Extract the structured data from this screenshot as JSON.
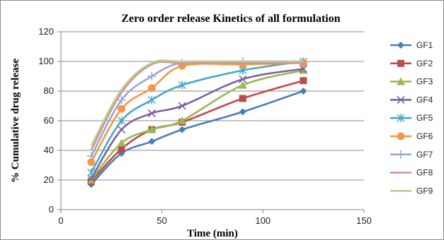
{
  "chart_data": {
    "type": "line",
    "title": "Zero order release Kinetics of all formulation",
    "xlabel": "Time (min)",
    "ylabel": "% Cumulative drug release",
    "xlim": [
      0,
      150
    ],
    "ylim": [
      0,
      120
    ],
    "xticks": [
      0,
      50,
      100,
      150
    ],
    "yticks": [
      0,
      20,
      40,
      60,
      80,
      100,
      120
    ],
    "grid": "horizontal",
    "legend_position": "right",
    "x": [
      15,
      30,
      45,
      60,
      90,
      120
    ],
    "series": [
      {
        "name": "GF1",
        "color": "#4a7ebb",
        "marker": "diamond",
        "values": [
          17,
          38,
          46,
          54,
          66,
          80
        ]
      },
      {
        "name": "GF2",
        "color": "#be4b48",
        "marker": "square",
        "values": [
          19,
          41,
          54,
          59,
          75,
          87
        ]
      },
      {
        "name": "GF3",
        "color": "#98b954",
        "marker": "triangle",
        "values": [
          20,
          45,
          54,
          60,
          84,
          94
        ]
      },
      {
        "name": "GF4",
        "color": "#7d60a0",
        "marker": "x",
        "values": [
          21,
          54,
          65,
          70,
          88,
          95
        ]
      },
      {
        "name": "GF5",
        "color": "#46aac5",
        "marker": "star",
        "values": [
          25,
          60,
          74,
          84,
          94,
          100
        ]
      },
      {
        "name": "GF6",
        "color": "#f79646",
        "marker": "circle",
        "values": [
          32,
          68,
          82,
          97,
          98,
          99
        ]
      },
      {
        "name": "GF7",
        "color": "#93a9cf",
        "marker": "plus",
        "values": [
          36,
          74,
          90,
          99,
          100,
          100
        ]
      },
      {
        "name": "GF8",
        "color": "#d19392",
        "marker": "none",
        "values": [
          40,
          79,
          98,
          99,
          99,
          99
        ]
      },
      {
        "name": "GF9",
        "color": "#b9cd96",
        "marker": "none",
        "values": [
          43,
          81,
          99,
          100,
          100,
          100
        ]
      }
    ]
  }
}
